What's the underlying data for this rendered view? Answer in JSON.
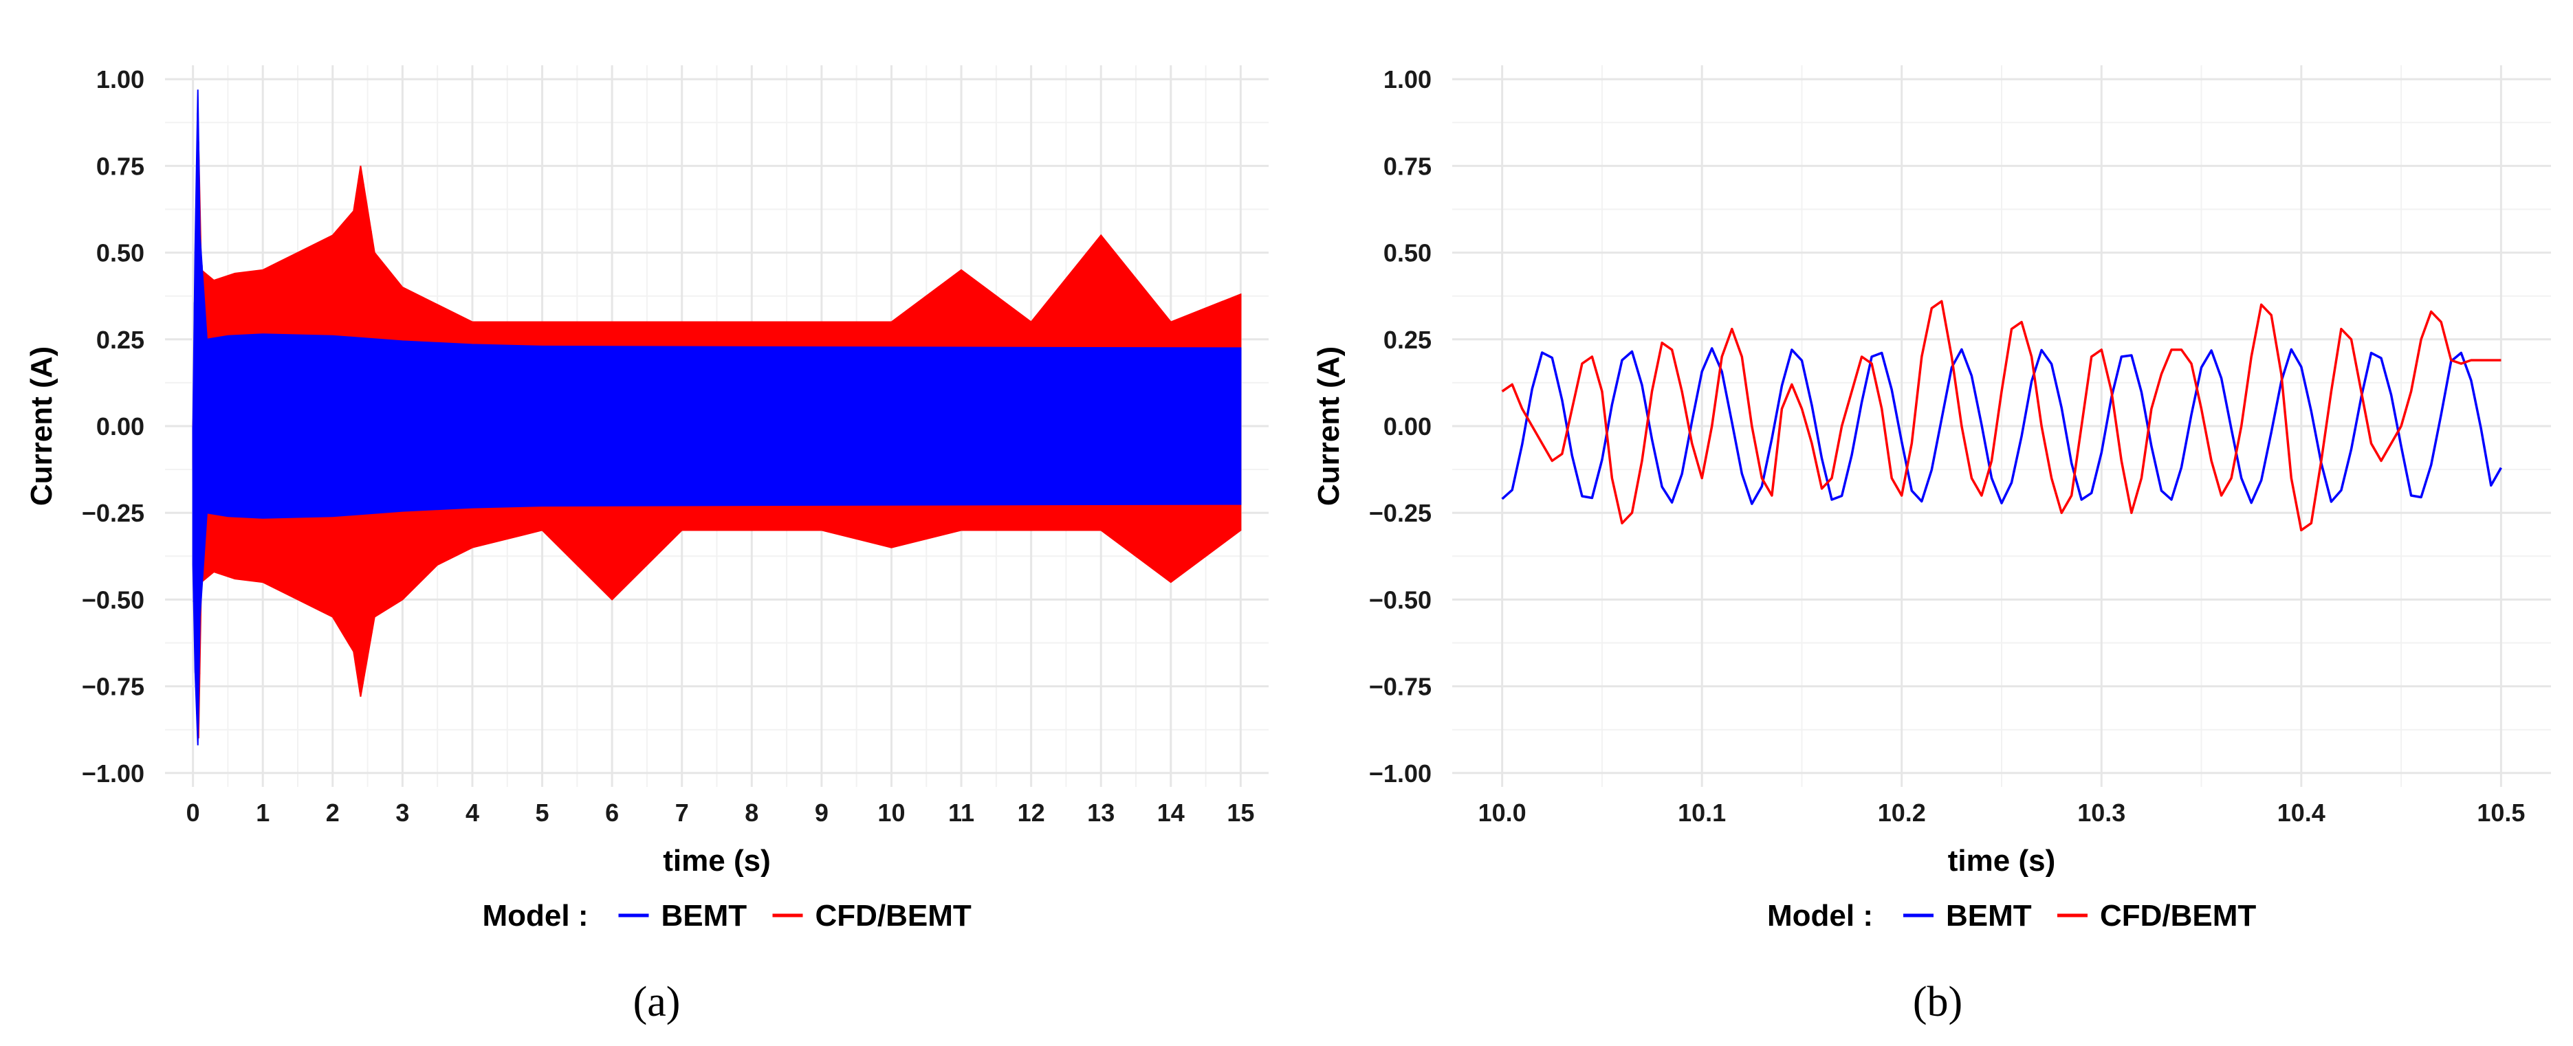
{
  "chart_data": [
    {
      "type": "line",
      "panel_label": "(a)",
      "xlabel": "time (s)",
      "ylabel": "Current (A)",
      "xlim": [
        -0.4,
        15.4
      ],
      "ylim": [
        -1.04,
        1.04
      ],
      "x_ticks": [
        0,
        1,
        2,
        3,
        4,
        5,
        6,
        7,
        8,
        9,
        10,
        11,
        12,
        13,
        14,
        15
      ],
      "y_ticks": [
        -1.0,
        -0.75,
        -0.5,
        -0.25,
        0.0,
        0.25,
        0.5,
        0.75,
        1.0
      ],
      "y_tick_labels": [
        "−1.00",
        "−0.75",
        "−0.50",
        "−0.25",
        "0.00",
        "0.25",
        "0.50",
        "0.75",
        "1.00"
      ],
      "grid": true,
      "legend_title": "Model :",
      "legend_position": "bottom",
      "series": [
        {
          "name": "CFD/BEMT",
          "color": "#ff0000",
          "render": "envelope",
          "upper": [
            [
              0.0,
              0.0
            ],
            [
              0.05,
              0.3
            ],
            [
              0.08,
              0.82
            ],
            [
              0.12,
              0.45
            ],
            [
              0.3,
              0.42
            ],
            [
              0.6,
              0.44
            ],
            [
              1.0,
              0.45
            ],
            [
              1.5,
              0.5
            ],
            [
              2.0,
              0.55
            ],
            [
              2.3,
              0.62
            ],
            [
              2.4,
              0.75
            ],
            [
              2.6,
              0.5
            ],
            [
              3.0,
              0.4
            ],
            [
              3.5,
              0.35
            ],
            [
              4.0,
              0.3
            ],
            [
              5.0,
              0.3
            ],
            [
              6.0,
              0.3
            ],
            [
              7.0,
              0.3
            ],
            [
              8.0,
              0.3
            ],
            [
              9.0,
              0.3
            ],
            [
              10.0,
              0.3
            ],
            [
              11.0,
              0.45
            ],
            [
              12.0,
              0.3
            ],
            [
              13.0,
              0.55
            ],
            [
              14.0,
              0.3
            ],
            [
              15.0,
              0.38
            ]
          ],
          "lower": [
            [
              0.0,
              -0.1
            ],
            [
              0.05,
              -0.6
            ],
            [
              0.08,
              -0.9
            ],
            [
              0.12,
              -0.45
            ],
            [
              0.3,
              -0.42
            ],
            [
              0.6,
              -0.44
            ],
            [
              1.0,
              -0.45
            ],
            [
              1.5,
              -0.5
            ],
            [
              2.0,
              -0.55
            ],
            [
              2.3,
              -0.65
            ],
            [
              2.4,
              -0.78
            ],
            [
              2.6,
              -0.55
            ],
            [
              3.0,
              -0.5
            ],
            [
              3.5,
              -0.4
            ],
            [
              4.0,
              -0.35
            ],
            [
              5.0,
              -0.3
            ],
            [
              6.0,
              -0.5
            ],
            [
              7.0,
              -0.3
            ],
            [
              8.0,
              -0.3
            ],
            [
              9.0,
              -0.3
            ],
            [
              10.0,
              -0.35
            ],
            [
              11.0,
              -0.3
            ],
            [
              12.0,
              -0.3
            ],
            [
              13.0,
              -0.3
            ],
            [
              14.0,
              -0.45
            ],
            [
              15.0,
              -0.3
            ]
          ]
        },
        {
          "name": "BEMT",
          "color": "#0000ff",
          "render": "envelope",
          "upper": [
            [
              0.0,
              0.0
            ],
            [
              0.03,
              0.5
            ],
            [
              0.07,
              0.97
            ],
            [
              0.1,
              0.55
            ],
            [
              0.2,
              0.25
            ],
            [
              0.5,
              0.26
            ],
            [
              1.0,
              0.265
            ],
            [
              2.0,
              0.26
            ],
            [
              3.0,
              0.245
            ],
            [
              4.0,
              0.235
            ],
            [
              5.0,
              0.23
            ],
            [
              8.0,
              0.228
            ],
            [
              15.0,
              0.225
            ]
          ],
          "lower": [
            [
              0.0,
              -0.4
            ],
            [
              0.03,
              -0.7
            ],
            [
              0.07,
              -0.92
            ],
            [
              0.1,
              -0.55
            ],
            [
              0.2,
              -0.25
            ],
            [
              0.5,
              -0.26
            ],
            [
              1.0,
              -0.265
            ],
            [
              2.0,
              -0.26
            ],
            [
              3.0,
              -0.245
            ],
            [
              4.0,
              -0.235
            ],
            [
              5.0,
              -0.23
            ],
            [
              8.0,
              -0.228
            ],
            [
              15.0,
              -0.225
            ]
          ]
        }
      ]
    },
    {
      "type": "line",
      "panel_label": "(b)",
      "xlabel": "time (s)",
      "ylabel": "Current (A)",
      "xlim": [
        9.975,
        10.525
      ],
      "ylim": [
        -1.04,
        1.04
      ],
      "x_ticks": [
        10.0,
        10.1,
        10.2,
        10.3,
        10.4,
        10.5
      ],
      "x_tick_labels": [
        "10.0",
        "10.1",
        "10.2",
        "10.3",
        "10.4",
        "10.5"
      ],
      "y_ticks": [
        -1.0,
        -0.75,
        -0.5,
        -0.25,
        0.0,
        0.25,
        0.5,
        0.75,
        1.0
      ],
      "y_tick_labels": [
        "−1.00",
        "−0.75",
        "−0.50",
        "−0.25",
        "0.00",
        "0.25",
        "0.50",
        "0.75",
        "1.00"
      ],
      "grid": true,
      "legend_title": "Model :",
      "legend_position": "bottom",
      "series": [
        {
          "name": "BEMT",
          "color": "#0000ff",
          "x": [
            10.0,
            10.005,
            10.01,
            10.015,
            10.02,
            10.025,
            10.03,
            10.035,
            10.04,
            10.045,
            10.05,
            10.055,
            10.06,
            10.065,
            10.07,
            10.075,
            10.08,
            10.085,
            10.09,
            10.095,
            10.1,
            10.105,
            10.11,
            10.115,
            10.12,
            10.125,
            10.13,
            10.135,
            10.14,
            10.145,
            10.15,
            10.155,
            10.16,
            10.165,
            10.17,
            10.175,
            10.18,
            10.185,
            10.19,
            10.195,
            10.2,
            10.205,
            10.21,
            10.215,
            10.22,
            10.225,
            10.23,
            10.235,
            10.24,
            10.245,
            10.25,
            10.255,
            10.26,
            10.265,
            10.27,
            10.275,
            10.28,
            10.285,
            10.29,
            10.295,
            10.3,
            10.305,
            10.31,
            10.315,
            10.32,
            10.325,
            10.33,
            10.335,
            10.34,
            10.345,
            10.35,
            10.355,
            10.36,
            10.365,
            10.37,
            10.375,
            10.38,
            10.385,
            10.39,
            10.395,
            10.4,
            10.405,
            10.41,
            10.415,
            10.42,
            10.425,
            10.43,
            10.435,
            10.44,
            10.445,
            10.45,
            10.455,
            10.46,
            10.465,
            10.47,
            10.475,
            10.48,
            10.485,
            10.49,
            10.495,
            10.5
          ],
          "y": [
            -0.21,
            -0.184,
            -0.053,
            0.107,
            0.212,
            0.197,
            0.075,
            -0.085,
            -0.202,
            -0.207,
            -0.097,
            0.062,
            0.19,
            0.215,
            0.118,
            -0.038,
            -0.175,
            -0.22,
            -0.138,
            0.014,
            0.157,
            0.224,
            0.157,
            0.011,
            -0.137,
            -0.224,
            -0.174,
            -0.036,
            0.116,
            0.22,
            0.189,
            0.06,
            -0.093,
            -0.212,
            -0.201,
            -0.083,
            0.069,
            0.2,
            0.211,
            0.105,
            -0.045,
            -0.186,
            -0.217,
            -0.126,
            0.021,
            0.169,
            0.221,
            0.145,
            0.004,
            -0.15,
            -0.222,
            -0.163,
            -0.029,
            0.129,
            0.219,
            0.179,
            0.053,
            -0.107,
            -0.212,
            -0.193,
            -0.076,
            0.083,
            0.2,
            0.204,
            0.098,
            -0.058,
            -0.186,
            -0.212,
            -0.119,
            0.033,
            0.169,
            0.218,
            0.138,
            -0.008,
            -0.15,
            -0.221,
            -0.156,
            -0.018,
            0.129,
            0.221,
            0.171,
            0.043,
            -0.107,
            -0.218,
            -0.185,
            -0.067,
            0.083,
            0.211,
            0.196,
            0.09,
            -0.058,
            -0.2,
            -0.205,
            -0.112,
            0.033,
            0.187,
            0.211,
            0.132,
            -0.008,
            -0.171,
            -0.12
          ]
        },
        {
          "name": "CFD/BEMT",
          "color": "#ff0000",
          "x": [
            10.0,
            10.005,
            10.01,
            10.015,
            10.02,
            10.025,
            10.03,
            10.035,
            10.04,
            10.045,
            10.05,
            10.055,
            10.06,
            10.065,
            10.07,
            10.075,
            10.08,
            10.085,
            10.09,
            10.095,
            10.1,
            10.105,
            10.11,
            10.115,
            10.12,
            10.125,
            10.13,
            10.135,
            10.14,
            10.145,
            10.15,
            10.155,
            10.16,
            10.165,
            10.17,
            10.175,
            10.18,
            10.185,
            10.19,
            10.195,
            10.2,
            10.205,
            10.21,
            10.215,
            10.22,
            10.225,
            10.23,
            10.235,
            10.24,
            10.245,
            10.25,
            10.255,
            10.26,
            10.265,
            10.27,
            10.275,
            10.28,
            10.285,
            10.29,
            10.295,
            10.3,
            10.305,
            10.31,
            10.315,
            10.32,
            10.325,
            10.33,
            10.335,
            10.34,
            10.345,
            10.35,
            10.355,
            10.36,
            10.365,
            10.37,
            10.375,
            10.38,
            10.385,
            10.39,
            10.395,
            10.4,
            10.405,
            10.41,
            10.415,
            10.42,
            10.425,
            10.43,
            10.435,
            10.44,
            10.445,
            10.45,
            10.455,
            10.46,
            10.465,
            10.47,
            10.475,
            10.48,
            10.485,
            10.49,
            10.495,
            10.5
          ],
          "y": [
            0.1,
            0.12,
            0.05,
            0.0,
            -0.05,
            -0.1,
            -0.08,
            0.05,
            0.18,
            0.2,
            0.1,
            -0.15,
            -0.28,
            -0.25,
            -0.1,
            0.1,
            0.24,
            0.22,
            0.1,
            -0.05,
            -0.15,
            0.0,
            0.2,
            0.28,
            0.2,
            0.0,
            -0.15,
            -0.2,
            0.05,
            0.12,
            0.05,
            -0.05,
            -0.18,
            -0.15,
            0.0,
            0.1,
            0.2,
            0.18,
            0.05,
            -0.15,
            -0.2,
            -0.05,
            0.2,
            0.34,
            0.36,
            0.2,
            0.0,
            -0.15,
            -0.2,
            -0.1,
            0.1,
            0.28,
            0.3,
            0.2,
            0.0,
            -0.15,
            -0.25,
            -0.2,
            0.0,
            0.2,
            0.22,
            0.1,
            -0.1,
            -0.25,
            -0.15,
            0.05,
            0.15,
            0.22,
            0.22,
            0.18,
            0.05,
            -0.1,
            -0.2,
            -0.15,
            0.0,
            0.2,
            0.35,
            0.32,
            0.15,
            -0.15,
            -0.3,
            -0.28,
            -0.1,
            0.1,
            0.28,
            0.25,
            0.1,
            -0.05,
            -0.1,
            -0.05,
            0.0,
            0.1,
            0.25,
            0.33,
            0.3,
            0.19,
            0.18,
            0.19,
            0.19,
            0.19,
            0.19
          ]
        }
      ]
    }
  ]
}
